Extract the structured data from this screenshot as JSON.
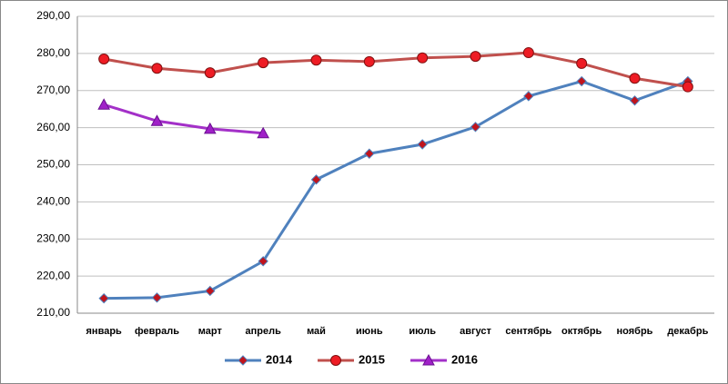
{
  "chart_data": {
    "type": "line",
    "categories": [
      "январь",
      "февраль",
      "март",
      "апрель",
      "май",
      "июнь",
      "июль",
      "август",
      "сентябрь",
      "октябрь",
      "ноябрь",
      "декабрь"
    ],
    "series": [
      {
        "name": "2014",
        "color": "#4f81bd",
        "marker": "diamond",
        "marker_color": "#c0141c",
        "values": [
          214,
          214.2,
          216,
          224,
          246,
          253,
          255.5,
          260.2,
          268.5,
          272.5,
          267.3,
          272.5
        ]
      },
      {
        "name": "2015",
        "color": "#c0504d",
        "marker": "circle",
        "marker_color": "#ee1c24",
        "values": [
          278.5,
          276,
          274.8,
          277.5,
          278.2,
          277.8,
          278.8,
          279.2,
          280.2,
          277.3,
          273.3,
          271
        ]
      },
      {
        "name": "2016",
        "color": "#a330c8",
        "marker": "triangle",
        "marker_color": "#a020c8",
        "values": [
          266.2,
          261.8,
          259.7,
          258.5,
          null,
          null,
          null,
          null,
          null,
          null,
          null,
          null
        ]
      }
    ],
    "ylim": [
      210,
      290
    ],
    "yticks": [
      {
        "value": 210,
        "label": "210,00"
      },
      {
        "value": 220,
        "label": "220,00"
      },
      {
        "value": 230,
        "label": "230,00"
      },
      {
        "value": 240,
        "label": "240,00"
      },
      {
        "value": 250,
        "label": "250,00"
      },
      {
        "value": 260,
        "label": "260,00"
      },
      {
        "value": 270,
        "label": "270,00"
      },
      {
        "value": 280,
        "label": "280,00"
      },
      {
        "value": 290,
        "label": "290,00"
      }
    ],
    "grid": true,
    "legend": "bottom"
  }
}
